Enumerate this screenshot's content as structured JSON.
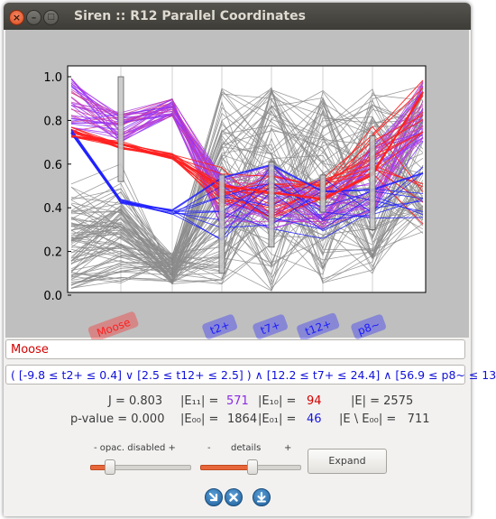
{
  "window": {
    "title": "Siren :: R12 Parallel Coordinates"
  },
  "plot": {
    "yticks": [
      "0.0",
      "0.2",
      "0.4",
      "0.6",
      "0.8",
      "1.0"
    ],
    "axes": [
      {
        "label": "Moose",
        "color": "#ff2020"
      },
      {
        "label": "",
        "color": ""
      },
      {
        "label": "t2+",
        "color": "#2020ff"
      },
      {
        "label": "t7+",
        "color": "#2020ff"
      },
      {
        "label": "t12+",
        "color": "#2020ff"
      },
      {
        "label": "p8~",
        "color": "#2020ff"
      }
    ]
  },
  "name_field": {
    "value": "Moose"
  },
  "query_field": {
    "value": "( [-9.8 ≤ t2+ ≤ 0.4] ∨ [2.5 ≤ t12+ ≤ 2.5] ) ∧ [12.2 ≤ t7+ ≤ 24.4] ∧ [56.9 ≤ p8~ ≤ 13"
  },
  "stats": {
    "j": "J = 0.803",
    "e11_label": "|E₁₁| =",
    "e11_value": "571",
    "e10_label": "|E₁₀| =",
    "e10_value": "94",
    "e_total": "|E| = 2575",
    "pvalue": "p-value = 0.000",
    "e00_label": "|E₀₀| =",
    "e00_value": "1864",
    "e01_label": "|E₀₁| =",
    "e01_value": "46",
    "e_minus": "|E \\ E₀₀| =   711"
  },
  "controls": {
    "opacity_label": "- opac. disabled +",
    "details_minus": "-",
    "details_label": "details",
    "details_plus": "+",
    "opacity_slider_value": 0.15,
    "details_slider_value": 0.5,
    "expand_label": "Expand"
  },
  "bottom_icons": [
    "arrow-down-right-icon",
    "close-icon",
    "download-icon"
  ],
  "colors": {
    "accent": "#e8673a",
    "inside": "#ff2020",
    "outside": "#2020ff",
    "selected_mid": "#9b30ff",
    "background_lines": "#8c8c8c"
  }
}
